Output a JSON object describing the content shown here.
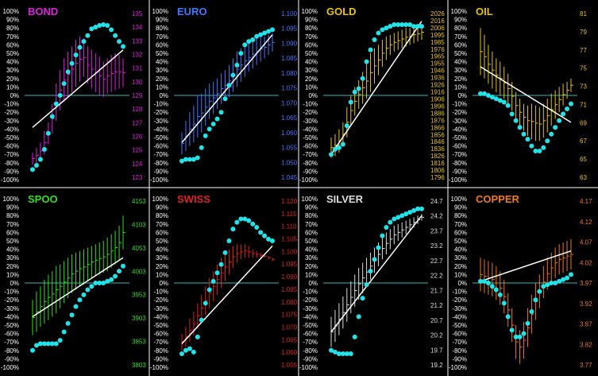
{
  "percent_ticks": [
    "100%",
    "90%",
    "80%",
    "70%",
    "60%",
    "50%",
    "40%",
    "30%",
    "20%",
    "10%",
    "0%",
    "-10%",
    "-20%",
    "-30%",
    "-40%",
    "-50%",
    "-60%",
    "-70%",
    "-80%",
    "-90%",
    "-100%"
  ],
  "colors": {
    "background": "#000000",
    "divider": "#ffffff",
    "zero_line": "#2fb7b7",
    "dots": "#22e3e8",
    "trend": "#ffffff"
  },
  "chart_data": [
    {
      "type": "line",
      "title": "BOND",
      "color": "#dd22dd",
      "ylim": [
        -100,
        100
      ],
      "right_ticks": [
        "135",
        "134",
        "133",
        "132",
        "131",
        "130",
        "129",
        "128",
        "127",
        "126",
        "125",
        "124",
        "123"
      ],
      "series": [
        {
          "name": "",
          "values": [
            -88,
            -83,
            -76,
            -64,
            -45,
            -25,
            -10,
            0,
            14,
            28,
            38,
            48,
            57,
            64,
            71,
            79,
            81,
            83,
            84,
            83,
            78,
            71,
            64,
            58
          ]
        }
      ],
      "bars": [
        [
          -82,
          -68
        ],
        [
          -80,
          -62
        ],
        [
          -76,
          -56
        ],
        [
          -70,
          -42
        ],
        [
          -58,
          -32
        ],
        [
          -45,
          -10
        ],
        [
          -30,
          14
        ],
        [
          -18,
          30
        ],
        [
          -8,
          44
        ],
        [
          -2,
          52
        ],
        [
          4,
          58
        ],
        [
          10,
          66
        ],
        [
          16,
          70
        ],
        [
          22,
          68
        ],
        [
          14,
          58
        ],
        [
          8,
          54
        ],
        [
          4,
          50
        ],
        [
          0,
          46
        ],
        [
          -2,
          40
        ],
        [
          2,
          44
        ],
        [
          4,
          48
        ],
        [
          6,
          50
        ],
        [
          8,
          48
        ],
        [
          10,
          44
        ]
      ],
      "trend": [
        -38,
        54
      ]
    },
    {
      "type": "line",
      "title": "EURO",
      "color": "#4477ff",
      "ylim": [
        -100,
        100
      ],
      "right_ticks": [
        "1.100",
        "1.095",
        "1.090",
        "1.085",
        "1.080",
        "1.075",
        "1.070",
        "1.065",
        "1.060",
        "1.055",
        "1.050",
        "1.045"
      ],
      "series": [
        {
          "name": "",
          "values": [
            -78,
            -76,
            -76,
            -76,
            -74,
            -62,
            -48,
            -40,
            -34,
            -28,
            -20,
            -4,
            12,
            24,
            36,
            50,
            60,
            64,
            66,
            70,
            72,
            74,
            76,
            78
          ]
        }
      ],
      "bars": [
        [
          -70,
          -44
        ],
        [
          -66,
          -30
        ],
        [
          -60,
          -20
        ],
        [
          -56,
          -12
        ],
        [
          -50,
          0
        ],
        [
          -44,
          2
        ],
        [
          -36,
          8
        ],
        [
          -28,
          14
        ],
        [
          -22,
          16
        ],
        [
          -16,
          20
        ],
        [
          -10,
          26
        ],
        [
          -6,
          30
        ],
        [
          -2,
          36
        ],
        [
          4,
          44
        ],
        [
          10,
          52
        ],
        [
          16,
          56
        ],
        [
          22,
          60
        ],
        [
          28,
          62
        ],
        [
          32,
          66
        ],
        [
          36,
          68
        ],
        [
          40,
          70
        ],
        [
          44,
          70
        ],
        [
          48,
          72
        ],
        [
          52,
          74
        ]
      ],
      "trend": [
        -56,
        72
      ]
    },
    {
      "type": "line",
      "title": "GOLD",
      "color": "#e8c21c",
      "ylim": [
        -100,
        100
      ],
      "right_ticks": [
        "2026",
        "2016",
        "2006",
        "1995",
        "1985",
        "1976",
        "1965",
        "1955",
        "1946",
        "1936",
        "1926",
        "1916",
        "1906",
        "1896",
        "1886",
        "1876",
        "1866",
        "1856",
        "1846",
        "1836",
        "1826",
        "1816",
        "1806",
        "1796"
      ],
      "series": [
        {
          "name": "",
          "values": [
            -70,
            -64,
            -62,
            -58,
            -36,
            -8,
            4,
            8,
            20,
            40,
            54,
            66,
            74,
            78,
            80,
            82,
            84,
            84,
            84,
            84,
            84,
            82,
            82,
            82
          ]
        }
      ],
      "bars": [
        [
          -74,
          -50
        ],
        [
          -72,
          -46
        ],
        [
          -68,
          -40
        ],
        [
          -60,
          -32
        ],
        [
          -50,
          -14
        ],
        [
          -36,
          0
        ],
        [
          -24,
          10
        ],
        [
          -16,
          18
        ],
        [
          -10,
          28
        ],
        [
          -4,
          38
        ],
        [
          4,
          50
        ],
        [
          14,
          56
        ],
        [
          24,
          60
        ],
        [
          34,
          66
        ],
        [
          42,
          70
        ],
        [
          48,
          72
        ],
        [
          52,
          74
        ],
        [
          54,
          76
        ],
        [
          56,
          78
        ],
        [
          58,
          80
        ],
        [
          60,
          80
        ],
        [
          62,
          82
        ],
        [
          64,
          82
        ],
        [
          66,
          84
        ]
      ],
      "trend": [
        -70,
        88
      ]
    },
    {
      "type": "line",
      "title": "OIL",
      "color": "#e8c21c",
      "ylim": [
        -100,
        100
      ],
      "right_ticks": [
        "81",
        "79",
        "77",
        "75",
        "73",
        "71",
        "69",
        "67",
        "65",
        "63"
      ],
      "series": [
        {
          "name": "",
          "values": [
            2,
            2,
            0,
            -2,
            -4,
            -6,
            -8,
            -12,
            -22,
            -30,
            -38,
            -46,
            -52,
            -60,
            -66,
            -66,
            -62,
            -54,
            -46,
            -38,
            -30,
            -22,
            -16,
            -10
          ]
        }
      ],
      "bars": [
        [
          24,
          80
        ],
        [
          20,
          72
        ],
        [
          14,
          60
        ],
        [
          8,
          52
        ],
        [
          4,
          44
        ],
        [
          0,
          40
        ],
        [
          -4,
          34
        ],
        [
          -10,
          26
        ],
        [
          -18,
          16
        ],
        [
          -28,
          4
        ],
        [
          -36,
          -4
        ],
        [
          -42,
          -10
        ],
        [
          -48,
          -12
        ],
        [
          -52,
          -10
        ],
        [
          -54,
          -12
        ],
        [
          -54,
          -14
        ],
        [
          -50,
          -10
        ],
        [
          -44,
          -4
        ],
        [
          -36,
          2
        ],
        [
          -28,
          6
        ],
        [
          -20,
          10
        ],
        [
          -12,
          14
        ],
        [
          -4,
          16
        ],
        [
          4,
          20
        ]
      ],
      "trend": [
        34,
        -32
      ]
    },
    {
      "type": "line",
      "title": "SPOO",
      "color": "#33dd22",
      "ylim": [
        -100,
        100
      ],
      "right_ticks": [
        "4153",
        "4103",
        "4053",
        "4003",
        "3953",
        "3903",
        "3853",
        "3803"
      ],
      "series": [
        {
          "name": "",
          "values": [
            -80,
            -74,
            -72,
            -72,
            -72,
            -72,
            -72,
            -68,
            -58,
            -48,
            -38,
            -28,
            -20,
            -14,
            -8,
            -4,
            0,
            0,
            0,
            2,
            4,
            8,
            14,
            20
          ]
        }
      ],
      "bars": [
        [
          -62,
          -20
        ],
        [
          -58,
          -10
        ],
        [
          -52,
          -4
        ],
        [
          -48,
          4
        ],
        [
          -44,
          10
        ],
        [
          -40,
          14
        ],
        [
          -36,
          20
        ],
        [
          -30,
          22
        ],
        [
          -24,
          26
        ],
        [
          -18,
          30
        ],
        [
          -12,
          34
        ],
        [
          -8,
          36
        ],
        [
          -4,
          38
        ],
        [
          -2,
          40
        ],
        [
          2,
          42
        ],
        [
          6,
          44
        ],
        [
          8,
          46
        ],
        [
          10,
          48
        ],
        [
          12,
          50
        ],
        [
          14,
          54
        ],
        [
          18,
          58
        ],
        [
          22,
          62
        ],
        [
          28,
          68
        ],
        [
          40,
          80
        ]
      ],
      "trend": [
        -40,
        30
      ]
    },
    {
      "type": "line",
      "title": "SWISS",
      "color": "#dd2222",
      "ylim": [
        -100,
        100
      ],
      "right_ticks": [
        "1.120",
        "1.115",
        "1.110",
        "1.105",
        "1.100",
        "1.095",
        "1.090",
        "1.085",
        "1.080",
        "1.075",
        "1.070",
        "1.065",
        "1.060",
        "1.055"
      ],
      "series": [
        {
          "name": "",
          "values": [
            -84,
            -80,
            -78,
            -82,
            -64,
            -44,
            -24,
            -8,
            2,
            12,
            22,
            36,
            50,
            64,
            72,
            76,
            76,
            74,
            70,
            66,
            60,
            56,
            52,
            50
          ]
        }
      ],
      "bars": [
        [
          -80,
          -60
        ],
        [
          -76,
          -52
        ],
        [
          -70,
          -42
        ],
        [
          -62,
          -34
        ],
        [
          -54,
          -24
        ],
        [
          -46,
          -14
        ],
        [
          -38,
          -4
        ],
        [
          -30,
          6
        ],
        [
          -22,
          14
        ],
        [
          -14,
          22
        ],
        [
          -6,
          30
        ],
        [
          2,
          36
        ],
        [
          10,
          40
        ],
        [
          18,
          44
        ],
        [
          24,
          46
        ],
        [
          28,
          46
        ],
        [
          30,
          46
        ],
        [
          30,
          44
        ],
        [
          30,
          40
        ],
        [
          30,
          38
        ],
        [
          30,
          36
        ],
        [
          30,
          34
        ],
        [
          28,
          32
        ],
        [
          26,
          30
        ]
      ],
      "trend": [
        -72,
        44
      ]
    },
    {
      "type": "line",
      "title": "SILVER",
      "color": "#dddddd",
      "ylim": [
        -100,
        100
      ],
      "right_ticks": [
        "24.7",
        "24.2",
        "23.7",
        "23.2",
        "22.7",
        "22.2",
        "21.7",
        "21.2",
        "20.7",
        "20.2",
        "19.7",
        "19.2"
      ],
      "series": [
        {
          "name": "",
          "values": [
            -80,
            -82,
            -84,
            -84,
            -84,
            -84,
            -64,
            -40,
            -18,
            -2,
            14,
            28,
            42,
            56,
            66,
            72,
            76,
            78,
            80,
            82,
            84,
            86,
            88,
            88
          ]
        }
      ],
      "bars": [
        [
          -76,
          -40
        ],
        [
          -70,
          -32
        ],
        [
          -62,
          -24
        ],
        [
          -54,
          -16
        ],
        [
          -46,
          -6
        ],
        [
          -36,
          2
        ],
        [
          -28,
          10
        ],
        [
          -20,
          18
        ],
        [
          -12,
          24
        ],
        [
          -4,
          30
        ],
        [
          4,
          36
        ],
        [
          12,
          42
        ],
        [
          20,
          48
        ],
        [
          28,
          54
        ],
        [
          34,
          60
        ],
        [
          40,
          64
        ],
        [
          46,
          68
        ],
        [
          50,
          70
        ],
        [
          54,
          72
        ],
        [
          58,
          74
        ],
        [
          62,
          76
        ],
        [
          66,
          78
        ],
        [
          70,
          80
        ],
        [
          74,
          82
        ]
      ],
      "trend": [
        -58,
        80
      ]
    },
    {
      "type": "line",
      "title": "COPPER",
      "color": "#ee7722",
      "ylim": [
        -100,
        100
      ],
      "right_ticks": [
        "4.17",
        "4.12",
        "4.07",
        "4.02",
        "3.97",
        "3.92",
        "3.87",
        "3.82",
        "3.77"
      ],
      "series": [
        {
          "name": "",
          "values": [
            2,
            2,
            0,
            -4,
            -8,
            -14,
            -24,
            -40,
            -56,
            -64,
            -64,
            -60,
            -48,
            -34,
            -20,
            -10,
            -4,
            -2,
            0,
            0,
            2,
            4,
            6,
            10
          ]
        }
      ],
      "bars": [
        [
          -10,
          30
        ],
        [
          -12,
          28
        ],
        [
          -14,
          26
        ],
        [
          -16,
          24
        ],
        [
          -20,
          20
        ],
        [
          -26,
          14
        ],
        [
          -36,
          4
        ],
        [
          -52,
          -12
        ],
        [
          -70,
          -30
        ],
        [
          -90,
          -50
        ],
        [
          -96,
          -56
        ],
        [
          -90,
          -46
        ],
        [
          -76,
          -30
        ],
        [
          -60,
          -14
        ],
        [
          -44,
          0
        ],
        [
          -30,
          10
        ],
        [
          -18,
          20
        ],
        [
          -8,
          30
        ],
        [
          0,
          36
        ],
        [
          6,
          42
        ],
        [
          10,
          46
        ],
        [
          12,
          48
        ],
        [
          14,
          50
        ],
        [
          16,
          52
        ]
      ],
      "trend": [
        2,
        38
      ]
    }
  ]
}
